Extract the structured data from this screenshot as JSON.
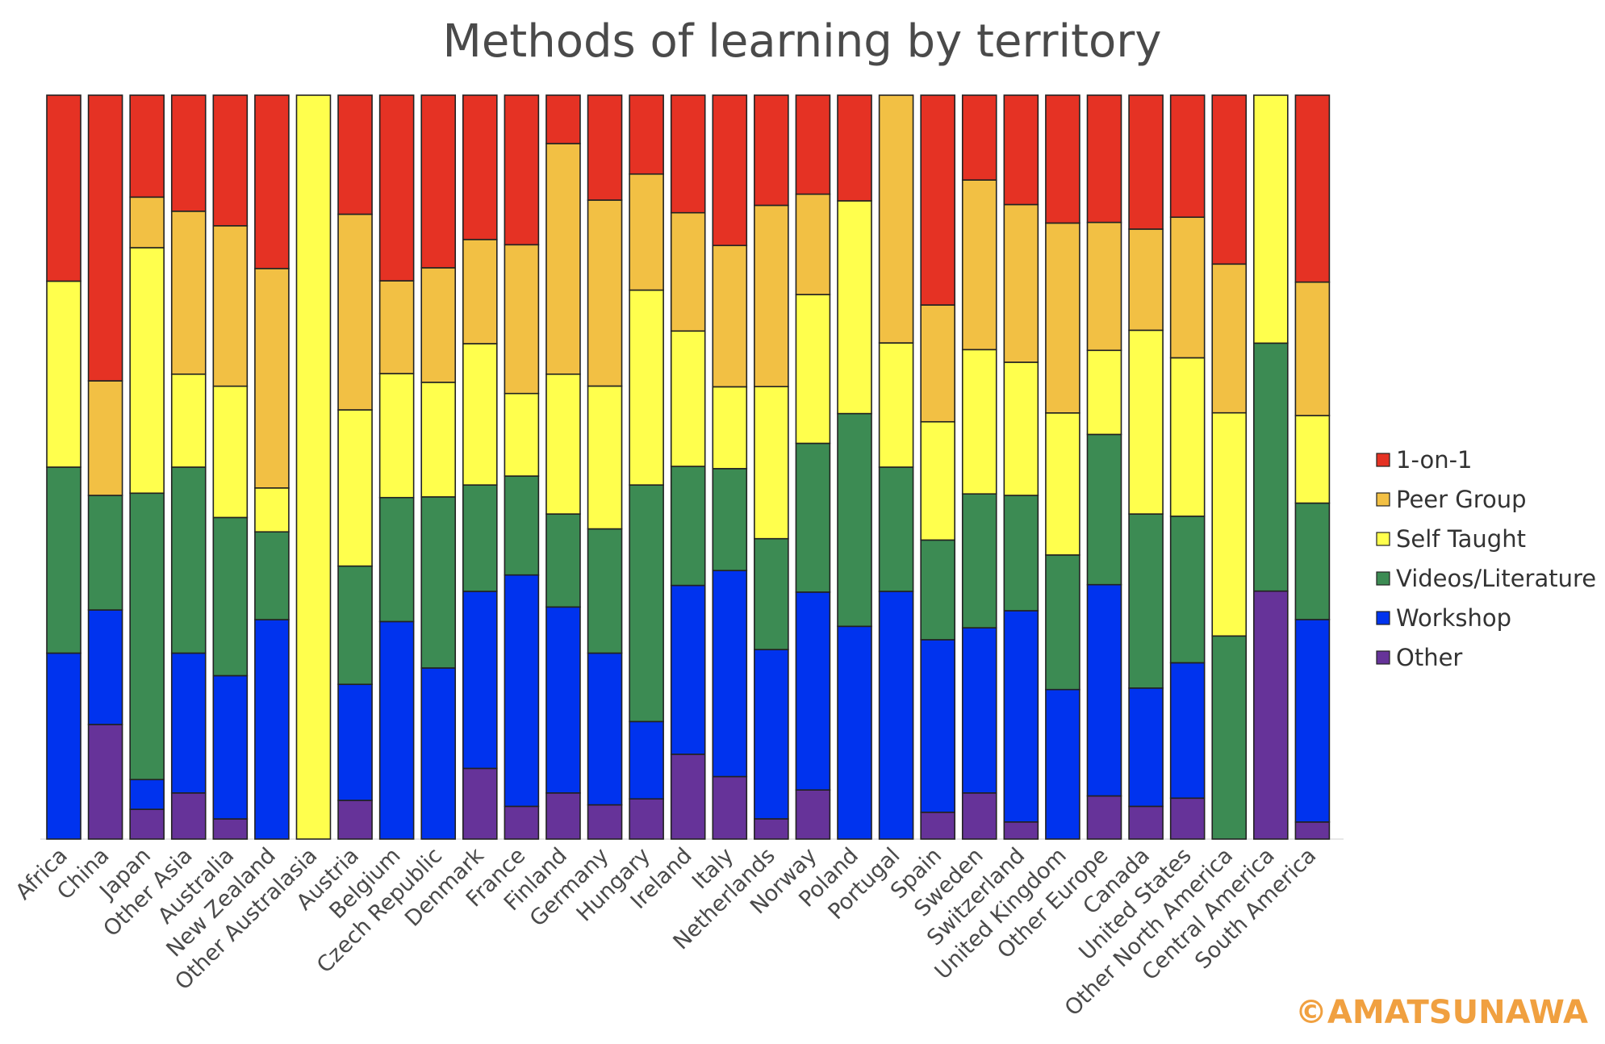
{
  "chart_data": {
    "type": "bar",
    "stacked": true,
    "normalized": true,
    "title": "Methods of learning by territory",
    "xlabel": "",
    "ylabel": "",
    "ylim": [
      0,
      100
    ],
    "grid": false,
    "legend_position": "right",
    "categories": [
      "Africa",
      "China",
      "Japan",
      "Other Asia",
      "Australia",
      "New Zealand",
      "Other Australasia",
      "Austria",
      "Belgium",
      "Czech Republic",
      "Denmark",
      "France",
      "Finland",
      "Germany",
      "Hungary",
      "Ireland",
      "Italy",
      "Netherlands",
      "Norway",
      "Poland",
      "Portugal",
      "Spain",
      "Sweden",
      "Switzerland",
      "United Kingdom",
      "Other Europe",
      "Canada",
      "United States",
      "Other North America",
      "Central America",
      "South America"
    ],
    "series": [
      {
        "name": "Other",
        "color": "#663399",
        "values": [
          0,
          15.4,
          4,
          6.2,
          2.7,
          0,
          0,
          5.2,
          0,
          0,
          9.5,
          4.4,
          6.2,
          4.6,
          5.4,
          11.4,
          8.4,
          2.7,
          6.6,
          0,
          0,
          3.6,
          6.2,
          2.3,
          0,
          5.8,
          4.4,
          5.5,
          0,
          33.3,
          2.3
        ]
      },
      {
        "name": "Workshop",
        "color": "#0033ee",
        "values": [
          25,
          15.4,
          4,
          18.8,
          19.2,
          29.5,
          0,
          15.6,
          29.3,
          23,
          23.8,
          31.1,
          25,
          20.4,
          10.4,
          22.7,
          27.7,
          22.6,
          26.6,
          28.6,
          33.3,
          23.2,
          22.2,
          28.4,
          20,
          28.4,
          15.9,
          18.2,
          0,
          0,
          27.3
        ]
      },
      {
        "name": "Videos/Literature",
        "color": "#3c8b53",
        "values": [
          25,
          15.4,
          38.5,
          25,
          21.2,
          11.8,
          0,
          15.9,
          16.7,
          23,
          14.3,
          13.3,
          12.5,
          16.7,
          31.8,
          16,
          13.7,
          14.8,
          20,
          28.6,
          16.7,
          13.4,
          18,
          15.5,
          18,
          20.2,
          23.4,
          19.7,
          27.3,
          33.3,
          15.7
        ]
      },
      {
        "name": "Self Taught",
        "color": "#ffff4d",
        "values": [
          25,
          0,
          33,
          12.5,
          17.6,
          5.9,
          100,
          21,
          16.7,
          15.4,
          19,
          11.1,
          18.8,
          19.2,
          26.2,
          18.2,
          11,
          20.3,
          20,
          28.6,
          16.7,
          15.9,
          19.4,
          17.9,
          19,
          11.3,
          24.7,
          21.3,
          30,
          33.3,
          11.8
        ]
      },
      {
        "name": "Peer Group",
        "color": "#f2c044",
        "values": [
          0,
          15.4,
          6.8,
          21.9,
          21.5,
          29.5,
          0,
          26.3,
          12.5,
          15.4,
          14,
          20,
          31,
          25,
          15.6,
          15.9,
          19,
          24.2,
          13.5,
          0,
          33.3,
          15.7,
          22.8,
          21.2,
          25.4,
          17.2,
          13.6,
          18.9,
          20,
          0,
          18
        ]
      },
      {
        "name": "1-on-1",
        "color": "#e53224",
        "values": [
          25,
          38.4,
          13.7,
          15.6,
          17.5,
          23.3,
          0,
          16,
          25,
          23.2,
          19.4,
          20.1,
          6.5,
          14.1,
          10.6,
          15.8,
          20.2,
          14.7,
          13.3,
          14.2,
          0,
          28.2,
          11.4,
          14.7,
          17.1,
          17.1,
          18,
          16.4,
          22.7,
          0,
          25.2
        ]
      }
    ]
  },
  "watermark": "©AMATSUNAWA"
}
